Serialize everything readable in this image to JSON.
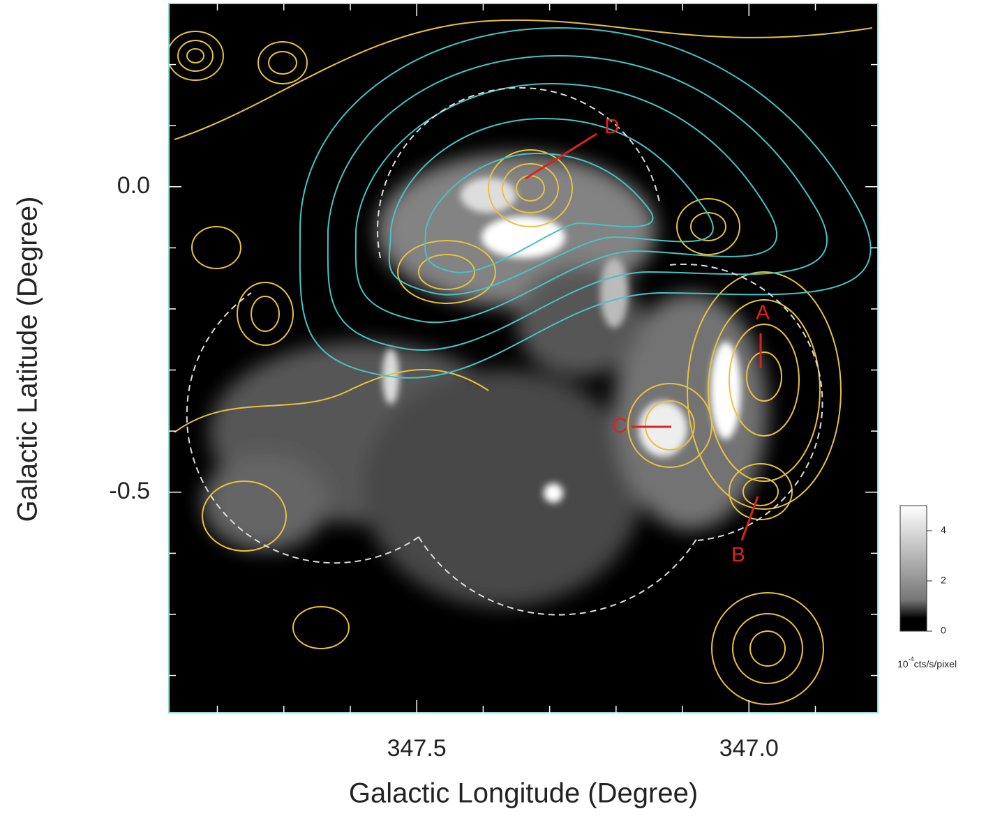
{
  "chart_data": {
    "type": "image",
    "xlabel": "Galactic Longitude (Degree)",
    "ylabel": "Galactic Latitude (Degree)",
    "xlim": [
      347.873,
      346.806
    ],
    "ylim": [
      -0.861,
      0.3
    ],
    "xticks": [
      {
        "value": 347.5,
        "label": "347.5"
      },
      {
        "value": 347.0,
        "label": "347.0"
      }
    ],
    "yticks": [
      {
        "value": 0,
        "label": "0.0"
      },
      {
        "value": -0.5,
        "label": "-0.5"
      }
    ],
    "xminor_ticks": [
      347.8,
      347.7,
      347.6,
      347.4,
      347.3,
      347.2,
      347.1,
      346.9
    ],
    "yminor_ticks": [
      0.2,
      0.1,
      -0.1,
      -0.2,
      -0.3,
      -0.4,
      -0.6,
      -0.7,
      -0.8
    ],
    "colorbar": {
      "clim": [
        0,
        5
      ],
      "ticks": [
        0,
        2,
        4
      ],
      "label_parts": [
        "10",
        "-4",
        "cts/s/pixel"
      ]
    },
    "annotations": [
      "A",
      "B",
      "C",
      "D"
    ]
  }
}
